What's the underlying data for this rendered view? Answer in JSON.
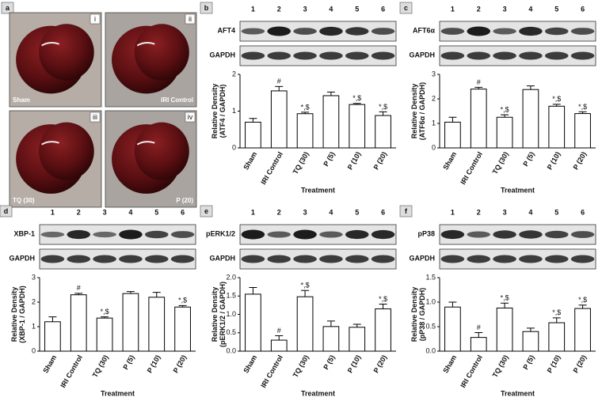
{
  "figure_a": {
    "letter": "a",
    "photos": [
      {
        "numeral": "i",
        "label": "Sham"
      },
      {
        "numeral": "ii",
        "label": "IRI Control"
      },
      {
        "numeral": "iii",
        "label": "TQ (30)"
      },
      {
        "numeral": "iv",
        "label": "P (20)"
      }
    ]
  },
  "chart_data": [
    {
      "type": "bar",
      "panel": "b",
      "lanes": [
        "1",
        "2",
        "3",
        "4",
        "5",
        "6"
      ],
      "blot_labels": [
        "AFT4",
        "GAPDH"
      ],
      "ylabel": [
        "Relative Density",
        "(ATF4 / GAPDH)"
      ],
      "xlabel": "Treatment",
      "categories": [
        "Sham",
        "IRI Control",
        "TQ (30)",
        "P (5)",
        "P (10)",
        "P (20)"
      ],
      "values": [
        0.7,
        1.55,
        0.93,
        1.42,
        1.18,
        0.88
      ],
      "errors": [
        0.1,
        0.12,
        0.04,
        0.1,
        0.03,
        0.1
      ],
      "annotations": [
        null,
        "#",
        "*,$",
        null,
        "*,$",
        "*,$"
      ],
      "color": "#ffffff",
      "ylim": [
        0,
        2
      ],
      "yticks": [
        0,
        1,
        2
      ]
    },
    {
      "type": "bar",
      "panel": "c",
      "lanes": [
        "1",
        "2",
        "3",
        "4",
        "5",
        "6"
      ],
      "blot_labels": [
        "AFT6α",
        "GAPDH"
      ],
      "ylabel": [
        "Relative Density",
        "(ATF6α / GAPDH)"
      ],
      "xlabel": "Treatment",
      "categories": [
        "Sham",
        "IRI Control",
        "TQ (30)",
        "P (5)",
        "P (10)",
        "P (20)"
      ],
      "values": [
        1.05,
        2.4,
        1.25,
        2.38,
        1.7,
        1.4
      ],
      "errors": [
        0.2,
        0.07,
        0.1,
        0.15,
        0.08,
        0.07
      ],
      "annotations": [
        null,
        "#",
        "*,$",
        null,
        "*,$",
        "*,$"
      ],
      "color": "#ffffff",
      "ylim": [
        0,
        3
      ],
      "yticks": [
        0,
        1,
        2,
        3
      ]
    },
    {
      "type": "bar",
      "panel": "d",
      "lanes": [
        "1",
        "2",
        "3",
        "4",
        "5",
        "6"
      ],
      "blot_labels": [
        "XBP-1",
        "GAPDH"
      ],
      "ylabel": [
        "Relative Density",
        "(XBP-1 / GAPDH)"
      ],
      "xlabel": "Treatment",
      "categories": [
        "Sham",
        "IRI Control",
        "TQ (30)",
        "P (5)",
        "P (10)",
        "P (20)"
      ],
      "values": [
        1.2,
        2.3,
        1.35,
        2.35,
        2.2,
        1.8
      ],
      "errors": [
        0.2,
        0.06,
        0.05,
        0.08,
        0.2,
        0.06
      ],
      "annotations": [
        null,
        "#",
        "*,$",
        null,
        null,
        "*,$"
      ],
      "color": "#ffffff",
      "ylim": [
        0,
        3
      ],
      "yticks": [
        0,
        1,
        2,
        3
      ]
    },
    {
      "type": "bar",
      "panel": "e",
      "lanes": [
        "1",
        "2",
        "3",
        "4",
        "5",
        "6"
      ],
      "blot_labels": [
        "pERK1/2",
        "GAPDH"
      ],
      "ylabel": [
        "Relative Density",
        "(pERK1/2 / GAPDH)"
      ],
      "xlabel": "Treatment",
      "categories": [
        "Sham",
        "IRI Control",
        "TQ (30)",
        "P (5)",
        "P (10)",
        "P (20)"
      ],
      "values": [
        1.55,
        0.3,
        1.48,
        0.67,
        0.65,
        1.15
      ],
      "errors": [
        0.18,
        0.12,
        0.17,
        0.15,
        0.08,
        0.13
      ],
      "annotations": [
        null,
        "#",
        "*,$",
        null,
        null,
        "*,$"
      ],
      "color": "#ffffff",
      "ylim": [
        0,
        2
      ],
      "yticks": [
        {
          "value": 0,
          "label": "0.0"
        },
        {
          "value": 0.5,
          "label": "0.5"
        },
        {
          "value": 1,
          "label": "1.0"
        },
        {
          "value": 1.5,
          "label": "1.5"
        },
        {
          "value": 2,
          "label": "2.0"
        }
      ]
    },
    {
      "type": "bar",
      "panel": "f",
      "lanes": [
        "1",
        "2",
        "3",
        "4",
        "5",
        "6"
      ],
      "blot_labels": [
        "pP38",
        "GAPDH"
      ],
      "ylabel": [
        "Relative Density",
        "(pP38 / GAPDH)"
      ],
      "xlabel": "Treatment",
      "categories": [
        "Sham",
        "IRI Control",
        "TQ (30)",
        "P (5)",
        "P (10)",
        "P (20)"
      ],
      "values": [
        0.9,
        0.28,
        0.88,
        0.4,
        0.58,
        0.87
      ],
      "errors": [
        0.1,
        0.1,
        0.1,
        0.07,
        0.1,
        0.07
      ],
      "annotations": [
        null,
        "#",
        "*,$",
        null,
        "*,$",
        "*,$"
      ],
      "color": "#ffffff",
      "ylim": [
        0,
        1.5
      ],
      "yticks": [
        {
          "value": 0,
          "label": "0.0"
        },
        {
          "value": 0.5,
          "label": "0.5"
        },
        {
          "value": 1,
          "label": "1.0"
        },
        {
          "value": 1.5,
          "label": "1.5"
        }
      ]
    }
  ]
}
